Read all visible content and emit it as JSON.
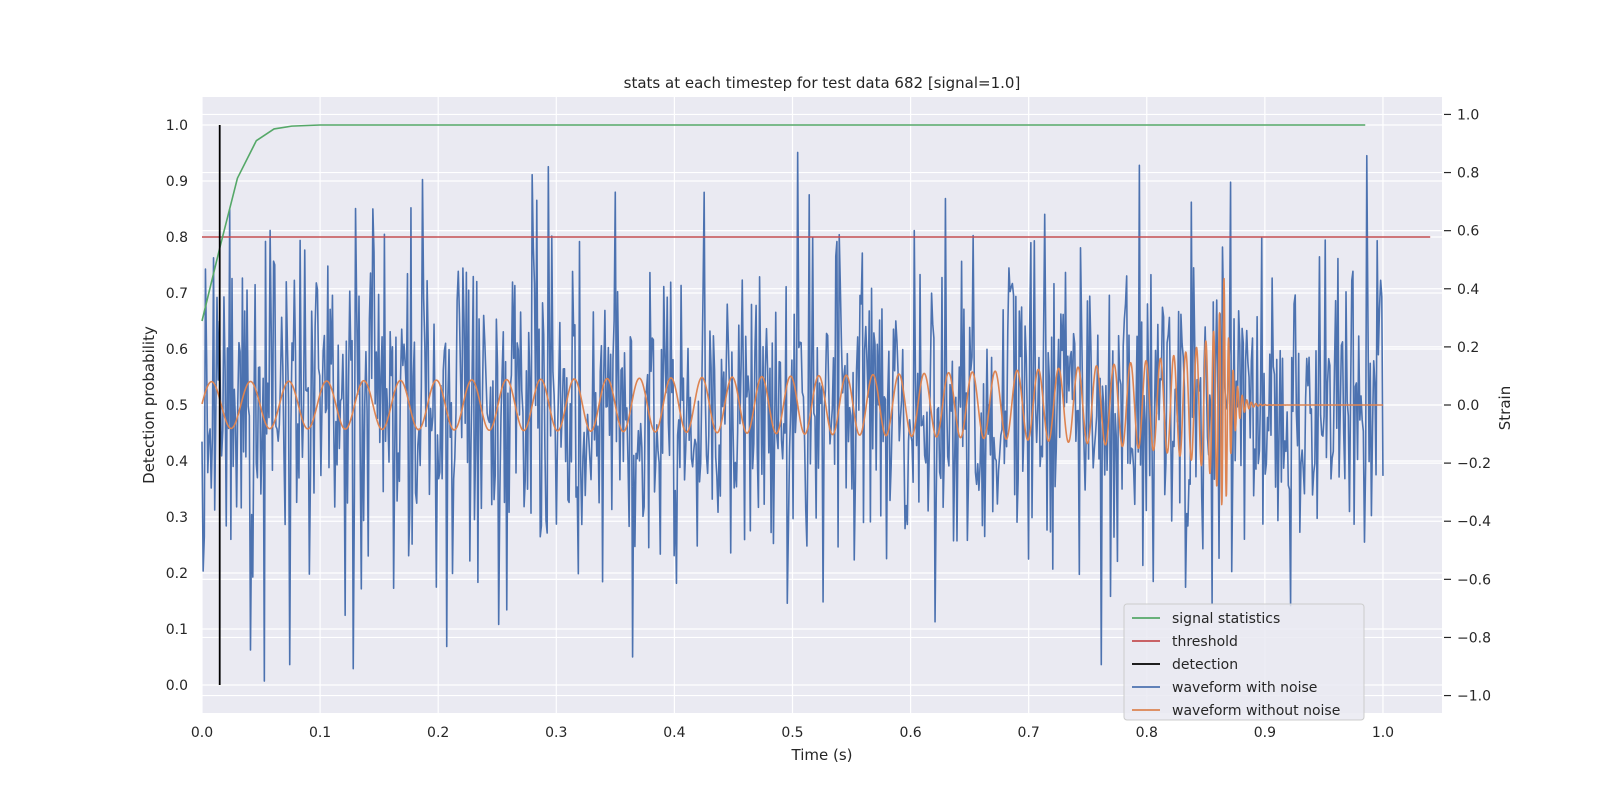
{
  "chart_data": {
    "type": "line",
    "title": "stats at each timestep for test data 682 [signal=1.0]",
    "xlabel": "Time (s)",
    "ylabel_left": "Detection probability",
    "ylabel_right": "Strain",
    "xlim": [
      0.0,
      1.05
    ],
    "ylim_left": [
      -0.05,
      1.05
    ],
    "ylim_right": [
      -1.06,
      1.06
    ],
    "x_ticks": [
      "0.0",
      "0.1",
      "0.2",
      "0.3",
      "0.4",
      "0.5",
      "0.6",
      "0.7",
      "0.8",
      "0.9",
      "1.0"
    ],
    "y_ticks_left": [
      "0.0",
      "0.1",
      "0.2",
      "0.3",
      "0.4",
      "0.5",
      "0.6",
      "0.7",
      "0.8",
      "0.9",
      "1.0"
    ],
    "y_ticks_right": [
      "−1.0",
      "−0.8",
      "−0.6",
      "−0.4",
      "−0.2",
      "0.0",
      "0.2",
      "0.4",
      "0.6",
      "0.8",
      "1.0"
    ],
    "grid": true,
    "legend_position": "lower-right",
    "background": "#EAEAF2",
    "series": [
      {
        "name": "signal statistics",
        "axis": "left",
        "color": "#55A868",
        "x": [
          0.0,
          0.015,
          0.03,
          0.046,
          0.061,
          0.076,
          0.1,
          0.2,
          0.4,
          0.6,
          0.8,
          0.985
        ],
        "y": [
          0.65,
          0.78,
          0.905,
          0.972,
          0.993,
          0.998,
          1.0,
          1.0,
          1.0,
          1.0,
          1.0,
          1.0
        ]
      },
      {
        "name": "threshold",
        "axis": "left",
        "color": "#C44E52",
        "x": [
          0.0,
          1.04
        ],
        "y": [
          0.8,
          0.8
        ]
      },
      {
        "name": "detection",
        "axis": "left",
        "color": "#000000",
        "x": [
          0.015,
          0.015
        ],
        "y": [
          0.0,
          1.0
        ]
      },
      {
        "name": "waveform with noise",
        "axis": "right",
        "color": "#4C72B0",
        "generated": "noise",
        "x_range": [
          0.0,
          1.0
        ],
        "n_points": 1024,
        "amplitude_range": [
          -0.95,
          0.95
        ]
      },
      {
        "name": "waveform without noise",
        "axis": "right",
        "color": "#DD8452",
        "generated": "chirp",
        "x_range": [
          0.0,
          1.0
        ],
        "merger_time": 0.865,
        "amplitude_start": 0.08,
        "amplitude_peak": 0.47,
        "frequency_start_hz": 30
      }
    ]
  }
}
